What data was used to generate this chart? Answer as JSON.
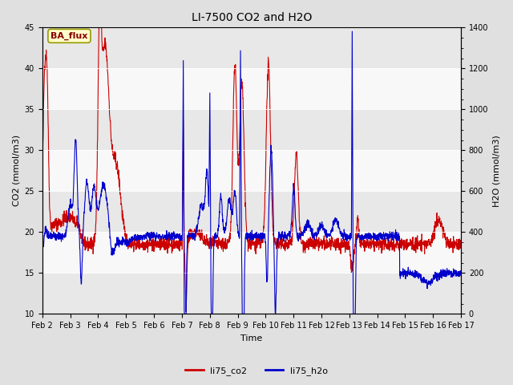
{
  "title": "LI-7500 CO2 and H2O",
  "xlabel": "Time",
  "ylabel_left": "CO2 (mmol/m3)",
  "ylabel_right": "H2O (mmol/m3)",
  "ylim_left": [
    10,
    45
  ],
  "ylim_right": [
    0,
    1400
  ],
  "yticks_left": [
    10,
    15,
    20,
    25,
    30,
    35,
    40,
    45
  ],
  "yticks_right": [
    0,
    200,
    400,
    600,
    800,
    1000,
    1200,
    1400
  ],
  "xtick_labels": [
    "Feb 2",
    "Feb 3",
    "Feb 4",
    "Feb 5",
    "Feb 6",
    "Feb 7",
    "Feb 8",
    "Feb 9",
    "Feb 10",
    "Feb 11",
    "Feb 12",
    "Feb 13",
    "Feb 14",
    "Feb 15",
    "Feb 16",
    "Feb 17"
  ],
  "co2_color": "#cc0000",
  "h2o_color": "#0000cc",
  "legend_label_co2": "li75_co2",
  "legend_label_h2o": "li75_h2o",
  "figure_bg_color": "#e0e0e0",
  "plot_bg_color": "#ffffff",
  "band_color_light": "#e8e8e8",
  "band_color_white": "#f8f8f8",
  "ba_flux_bg": "#ffffcc",
  "ba_flux_border": "#999900",
  "linewidth": 0.8,
  "title_fontsize": 10,
  "axis_fontsize": 8,
  "tick_fontsize": 7,
  "legend_fontsize": 8
}
